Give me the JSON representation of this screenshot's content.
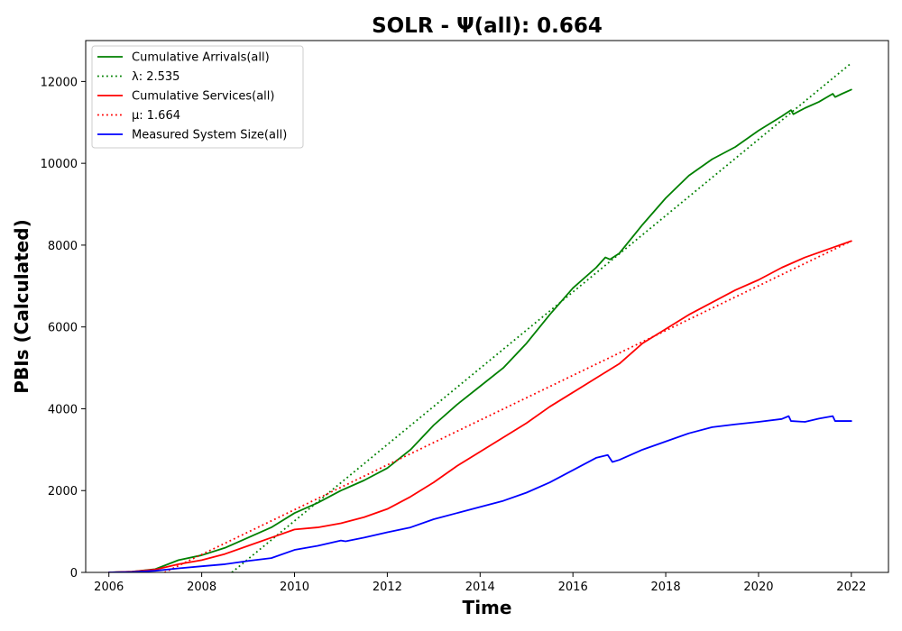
{
  "chart_data": {
    "type": "line",
    "title": "SOLR -  Ψ(all): 0.664",
    "xlabel": "Time",
    "ylabel": "PBIs (Calculated)",
    "xlim": [
      2005.5,
      2022.8
    ],
    "ylim": [
      0,
      13000
    ],
    "xticks": [
      2006,
      2008,
      2010,
      2012,
      2014,
      2016,
      2018,
      2020,
      2022
    ],
    "yticks": [
      0,
      2000,
      4000,
      6000,
      8000,
      10000,
      12000
    ],
    "grid": false,
    "legend_position": "top-left",
    "series": [
      {
        "name": "Cumulative Arrivals(all)",
        "style": "solid",
        "color": "#008000",
        "x": [
          2006.0,
          2006.5,
          2007.0,
          2007.5,
          2008.0,
          2008.5,
          2009.0,
          2009.5,
          2010.0,
          2010.5,
          2011.0,
          2011.5,
          2012.0,
          2012.5,
          2013.0,
          2013.5,
          2014.0,
          2014.5,
          2015.0,
          2015.5,
          2016.0,
          2016.5,
          2016.7,
          2016.8,
          2017.0,
          2017.5,
          2018.0,
          2018.5,
          2019.0,
          2019.5,
          2020.0,
          2020.5,
          2020.7,
          2020.75,
          2021.0,
          2021.3,
          2021.6,
          2021.65,
          2021.8,
          2022.0
        ],
        "y": [
          0,
          20,
          80,
          300,
          420,
          600,
          850,
          1100,
          1450,
          1700,
          2000,
          2250,
          2550,
          3000,
          3600,
          4100,
          4550,
          5000,
          5600,
          6300,
          6950,
          7450,
          7700,
          7650,
          7800,
          8500,
          9150,
          9700,
          10100,
          10400,
          10800,
          11150,
          11300,
          11200,
          11350,
          11500,
          11700,
          11620,
          11700,
          11800
        ]
      },
      {
        "name": "λ: 2.535",
        "style": "dotted",
        "color": "#008000",
        "x": [
          2008.65,
          2022.0
        ],
        "y": [
          0,
          12450
        ]
      },
      {
        "name": "Cumulative Services(all)",
        "style": "solid",
        "color": "#ff0000",
        "x": [
          2006.0,
          2006.5,
          2007.0,
          2007.5,
          2008.0,
          2008.5,
          2009.0,
          2009.5,
          2010.0,
          2010.5,
          2011.0,
          2011.5,
          2012.0,
          2012.5,
          2013.0,
          2013.5,
          2014.0,
          2014.5,
          2015.0,
          2015.5,
          2016.0,
          2016.5,
          2017.0,
          2017.5,
          2018.0,
          2018.5,
          2019.0,
          2019.5,
          2020.0,
          2020.5,
          2021.0,
          2021.5,
          2022.0
        ],
        "y": [
          0,
          20,
          70,
          200,
          300,
          450,
          650,
          850,
          1050,
          1100,
          1200,
          1350,
          1550,
          1850,
          2200,
          2600,
          2950,
          3300,
          3650,
          4050,
          4400,
          4750,
          5100,
          5600,
          5950,
          6300,
          6600,
          6900,
          7150,
          7450,
          7700,
          7900,
          8100
        ]
      },
      {
        "name": "μ: 1.664",
        "style": "dotted",
        "color": "#ff0000",
        "x": [
          2007.2,
          2022.0
        ],
        "y": [
          0,
          8100
        ]
      },
      {
        "name": "Measured System Size(all)",
        "style": "solid",
        "color": "#0000ff",
        "x": [
          2006.0,
          2006.5,
          2007.0,
          2007.5,
          2008.0,
          2008.5,
          2009.0,
          2009.5,
          2010.0,
          2010.5,
          2011.0,
          2011.1,
          2011.5,
          2012.0,
          2012.5,
          2013.0,
          2013.5,
          2014.0,
          2014.5,
          2015.0,
          2015.5,
          2016.0,
          2016.5,
          2016.75,
          2016.85,
          2017.0,
          2017.5,
          2018.0,
          2018.5,
          2019.0,
          2019.5,
          2020.0,
          2020.5,
          2020.65,
          2020.7,
          2021.0,
          2021.3,
          2021.6,
          2021.65,
          2022.0
        ],
        "y": [
          0,
          10,
          40,
          100,
          150,
          200,
          280,
          350,
          550,
          650,
          780,
          760,
          850,
          980,
          1100,
          1300,
          1450,
          1600,
          1750,
          1950,
          2200,
          2500,
          2800,
          2870,
          2700,
          2750,
          3000,
          3200,
          3400,
          3550,
          3620,
          3680,
          3750,
          3820,
          3700,
          3680,
          3760,
          3820,
          3700,
          3700
        ]
      }
    ]
  }
}
